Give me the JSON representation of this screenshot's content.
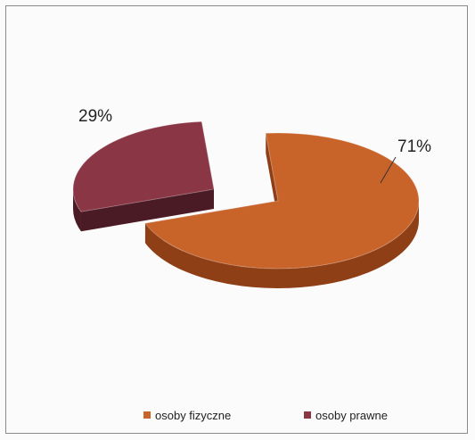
{
  "chart_data": {
    "type": "pie",
    "style": "3d-exploded",
    "categories": [
      "osoby fizyczne",
      "osoby prawne"
    ],
    "values": [
      71,
      29
    ],
    "data_labels": [
      "71%",
      "29%"
    ],
    "legend_position": "bottom",
    "colors": [
      "#c8642a",
      "#8a3645"
    ],
    "side_colors": [
      "#8e3f16",
      "#4a1b24"
    ]
  }
}
